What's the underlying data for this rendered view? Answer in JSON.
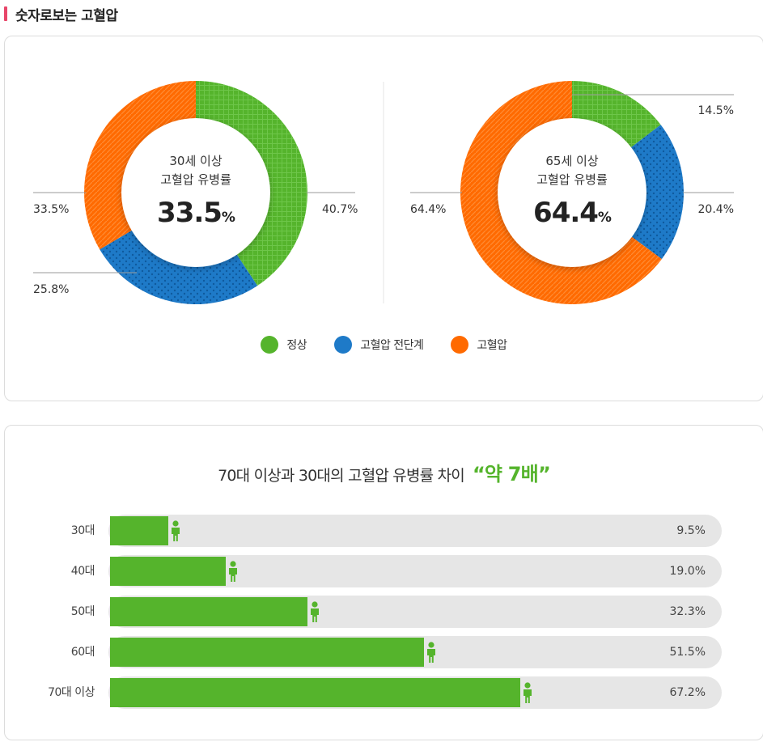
{
  "section_title": "숫자로보는 고혈압",
  "colors": {
    "normal": "#55b42c",
    "pre": "#1e7ac8",
    "hyper": "#ff6a00",
    "accent": "#e8466a"
  },
  "legend": [
    {
      "label": "정상",
      "color": "#55b42c"
    },
    {
      "label": "고혈압 전단계",
      "color": "#1e7ac8"
    },
    {
      "label": "고혈압",
      "color": "#ff6a00"
    }
  ],
  "chart_data": [
    {
      "type": "pie",
      "center_line1": "30세 이상",
      "center_line2": "고혈압 유병률",
      "center_value": "33.5",
      "center_unit": "%",
      "slices": [
        {
          "label": "정상",
          "value": 40.7,
          "display": "40.7%"
        },
        {
          "label": "고혈압 전단계",
          "value": 25.8,
          "display": "25.8%"
        },
        {
          "label": "고혈압",
          "value": 33.5,
          "display": "33.5%"
        }
      ]
    },
    {
      "type": "pie",
      "center_line1": "65세 이상",
      "center_line2": "고혈압 유병률",
      "center_value": "64.4",
      "center_unit": "%",
      "slices": [
        {
          "label": "정상",
          "value": 14.5,
          "display": "14.5%"
        },
        {
          "label": "고혈압 전단계",
          "value": 20.4,
          "display": "20.4%"
        },
        {
          "label": "고혈압",
          "value": 64.4,
          "display": "64.4%"
        }
      ]
    },
    {
      "type": "bar",
      "title": "70대 이상과 30대의 고혈압 유병률 차이",
      "highlight": "“약 7배”",
      "categories": [
        "30대",
        "40대",
        "50대",
        "60대",
        "70대 이상"
      ],
      "values": [
        9.5,
        19.0,
        32.3,
        51.5,
        67.2
      ],
      "value_labels": [
        "9.5%",
        "19.0%",
        "32.3%",
        "51.5%",
        "67.2%"
      ],
      "xlim": [
        0,
        100
      ]
    }
  ]
}
